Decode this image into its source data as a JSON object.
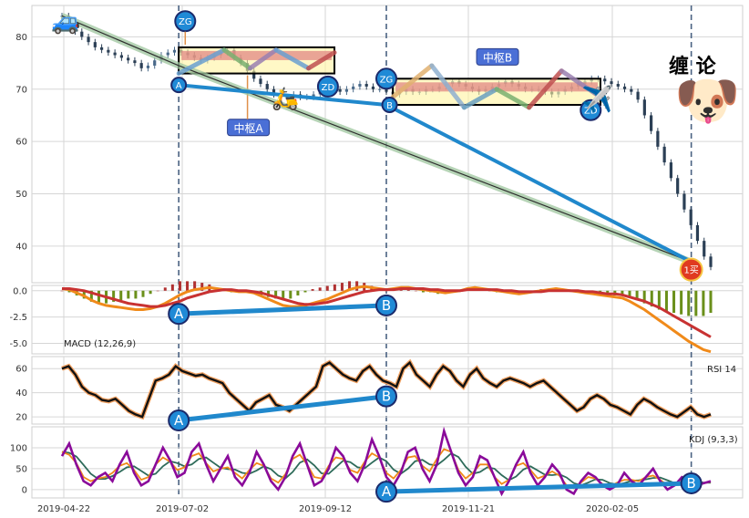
{
  "chart_data": {
    "type": "candlestick",
    "x_ticks": [
      "2019-04-22",
      "2019-07-02",
      "2019-09-12",
      "2019-11-21",
      "2020-02-05"
    ],
    "price": {
      "yticks": [
        40,
        50,
        60,
        70,
        80
      ],
      "ylim": [
        33,
        86
      ],
      "close": [
        84,
        82.5,
        81,
        80,
        79,
        78,
        77.5,
        77,
        76.5,
        76,
        75.5,
        75,
        74,
        74.5,
        75.5,
        76.5,
        77,
        77.5,
        77,
        76.5,
        76,
        75.5,
        76,
        76.5,
        77,
        77.5,
        76,
        75,
        73.5,
        72,
        71,
        70,
        69,
        68.5,
        68.5,
        69,
        68.5,
        68.5,
        69,
        70,
        70.5,
        70,
        69.5,
        70,
        70.5,
        71,
        70.5,
        70,
        70,
        69.5,
        69,
        69.5,
        70,
        69.5,
        69.5,
        70,
        70,
        70.5,
        71,
        71.5,
        71,
        70.5,
        70,
        69.5,
        70,
        70.5,
        71,
        71.5,
        71,
        70.5,
        70,
        70,
        70,
        69.5,
        69,
        69.5,
        70,
        70.5,
        71,
        71.5,
        72,
        72,
        71.5,
        71,
        70.5,
        70,
        69.5,
        68,
        65,
        62,
        59,
        56,
        53,
        50,
        47,
        44,
        41,
        38,
        36
      ],
      "strokes": [
        {
          "from": [
            0,
            84
          ],
          "to": [
            18,
            74.5
          ]
        },
        {
          "from": [
            18,
            74.5
          ],
          "to": [
            97,
            37
          ]
        }
      ],
      "blue_lines": [
        {
          "from": [
            18,
            70.8
          ],
          "to": [
            50,
            67
          ]
        },
        {
          "from": [
            50,
            67
          ],
          "to": [
            97,
            37
          ]
        }
      ],
      "zhongshu": [
        {
          "label": "中枢A",
          "x": [
            18,
            42
          ],
          "y": [
            73,
            78
          ]
        },
        {
          "label": "中枢B",
          "x": [
            51,
            83
          ],
          "y": [
            67,
            72
          ]
        }
      ],
      "zigzag_B": [
        [
          51,
          68.5
        ],
        [
          57,
          74.5
        ],
        [
          62,
          66.5
        ],
        [
          67,
          70
        ],
        [
          72,
          66.5
        ],
        [
          77,
          73.5
        ],
        [
          83,
          68.5
        ]
      ],
      "markers": [
        {
          "text": "A",
          "x": 18,
          "y": 70.8
        },
        {
          "text": "ZG",
          "x": 19,
          "y": 83
        },
        {
          "text": "ZD",
          "x": 41,
          "y": 70.5
        },
        {
          "text": "ZG",
          "x": 50,
          "y": 72
        },
        {
          "text": "B",
          "x": 50.5,
          "y": 67
        },
        {
          "text": "ZD",
          "x": 81.5,
          "y": 66
        },
        {
          "text": "1买",
          "x": 97,
          "y": 35.5
        }
      ],
      "title_text": "缠 论",
      "vlines": [
        18,
        50,
        97
      ]
    },
    "macd": {
      "label": "MACD (12,26,9)",
      "yticks": [
        0.0,
        -2.5,
        -5.0
      ],
      "ylim": [
        -6.0,
        0.5
      ],
      "dif": [
        0.2,
        0.1,
        -0.2,
        -0.5,
        -0.9,
        -1.2,
        -1.4,
        -1.5,
        -1.6,
        -1.7,
        -1.8,
        -1.8,
        -1.7,
        -1.5,
        -1.2,
        -0.8,
        -0.4,
        -0.1,
        0.1,
        0.2,
        0.3,
        0.2,
        0.1,
        0.0,
        -0.1,
        -0.1,
        -0.2,
        -0.5,
        -0.8,
        -1.1,
        -1.4,
        -1.5,
        -1.5,
        -1.4,
        -1.2,
        -1.0,
        -0.8,
        -0.5,
        -0.2,
        0.1,
        0.3,
        0.4,
        0.3,
        0.2,
        0.1,
        0.2,
        0.3,
        0.3,
        0.2,
        0.1,
        0.0,
        -0.1,
        -0.2,
        -0.1,
        0.0,
        0.2,
        0.3,
        0.2,
        0.1,
        0.0,
        -0.1,
        -0.2,
        -0.3,
        -0.2,
        -0.1,
        0.0,
        0.1,
        0.2,
        0.1,
        0.0,
        -0.1,
        -0.2,
        -0.3,
        -0.4,
        -0.5,
        -0.6,
        -0.7,
        -1.0,
        -1.4,
        -1.8,
        -2.3,
        -2.8,
        -3.3,
        -3.8,
        -4.3,
        -4.8,
        -5.2,
        -5.6,
        -5.8
      ],
      "dea": [
        0.2,
        0.2,
        0.1,
        0.0,
        -0.2,
        -0.4,
        -0.6,
        -0.8,
        -1.0,
        -1.2,
        -1.3,
        -1.4,
        -1.5,
        -1.5,
        -1.4,
        -1.2,
        -1.0,
        -0.7,
        -0.5,
        -0.3,
        -0.1,
        0.0,
        0.1,
        0.1,
        0.0,
        0.0,
        -0.1,
        -0.2,
        -0.4,
        -0.6,
        -0.8,
        -1.0,
        -1.2,
        -1.3,
        -1.3,
        -1.2,
        -1.1,
        -0.9,
        -0.7,
        -0.5,
        -0.3,
        -0.1,
        0.0,
        0.1,
        0.1,
        0.1,
        0.2,
        0.2,
        0.2,
        0.2,
        0.1,
        0.1,
        0.0,
        0.0,
        0.0,
        0.1,
        0.1,
        0.1,
        0.1,
        0.1,
        0.0,
        0.0,
        -0.1,
        -0.1,
        -0.1,
        -0.1,
        0.0,
        0.0,
        0.0,
        0.0,
        0.0,
        -0.1,
        -0.1,
        -0.2,
        -0.3,
        -0.3,
        -0.4,
        -0.6,
        -0.8,
        -1.0,
        -1.3,
        -1.6,
        -2.0,
        -2.4,
        -2.8,
        -3.2,
        -3.6,
        -4.0,
        -4.4
      ],
      "divergence": [
        {
          "text": "A",
          "x": 18,
          "y": -2.2
        },
        {
          "text": "B",
          "x": 50,
          "y": -1.4
        }
      ]
    },
    "rsi": {
      "label": "RSI 14",
      "yticks": [
        20,
        40,
        60
      ],
      "ylim": [
        14,
        70
      ],
      "values": [
        60,
        62,
        55,
        45,
        40,
        38,
        34,
        33,
        35,
        30,
        25,
        22,
        20,
        35,
        50,
        52,
        55,
        62,
        58,
        56,
        54,
        55,
        52,
        50,
        48,
        40,
        35,
        30,
        25,
        32,
        35,
        38,
        30,
        28,
        25,
        30,
        35,
        40,
        45,
        62,
        65,
        60,
        55,
        52,
        50,
        58,
        62,
        55,
        50,
        48,
        45,
        60,
        65,
        55,
        50,
        45,
        55,
        62,
        58,
        50,
        45,
        55,
        60,
        52,
        48,
        45,
        50,
        52,
        50,
        48,
        45,
        48,
        50,
        45,
        40,
        35,
        30,
        25,
        28,
        35,
        38,
        35,
        30,
        28,
        25,
        22,
        30,
        35,
        32,
        28,
        25,
        22,
        20,
        24,
        28,
        22,
        20,
        22
      ],
      "divergence": [
        {
          "text": "A",
          "x": 18,
          "y": 17
        },
        {
          "text": "B",
          "x": 50,
          "y": 37
        }
      ]
    },
    "kdj": {
      "label": "KDJ (9,3,3)",
      "yticks": [
        0,
        50,
        100
      ],
      "ylim": [
        -20,
        150
      ],
      "j": [
        80,
        110,
        60,
        20,
        10,
        30,
        40,
        20,
        60,
        90,
        40,
        10,
        20,
        60,
        100,
        70,
        30,
        40,
        90,
        110,
        60,
        20,
        50,
        80,
        30,
        10,
        40,
        90,
        60,
        20,
        0,
        30,
        80,
        110,
        60,
        10,
        20,
        50,
        100,
        80,
        40,
        20,
        60,
        120,
        80,
        30,
        10,
        40,
        90,
        100,
        50,
        20,
        60,
        140,
        90,
        40,
        10,
        30,
        80,
        70,
        30,
        -10,
        20,
        60,
        90,
        40,
        10,
        30,
        60,
        40,
        0,
        -10,
        20,
        40,
        30,
        10,
        0,
        10,
        40,
        20,
        10,
        30,
        50,
        20,
        0,
        10,
        30,
        20,
        10,
        15,
        20
      ],
      "divergence": [
        {
          "text": "A",
          "x": 50,
          "y": -5
        },
        {
          "text": "B",
          "x": 97,
          "y": 15
        }
      ]
    }
  }
}
